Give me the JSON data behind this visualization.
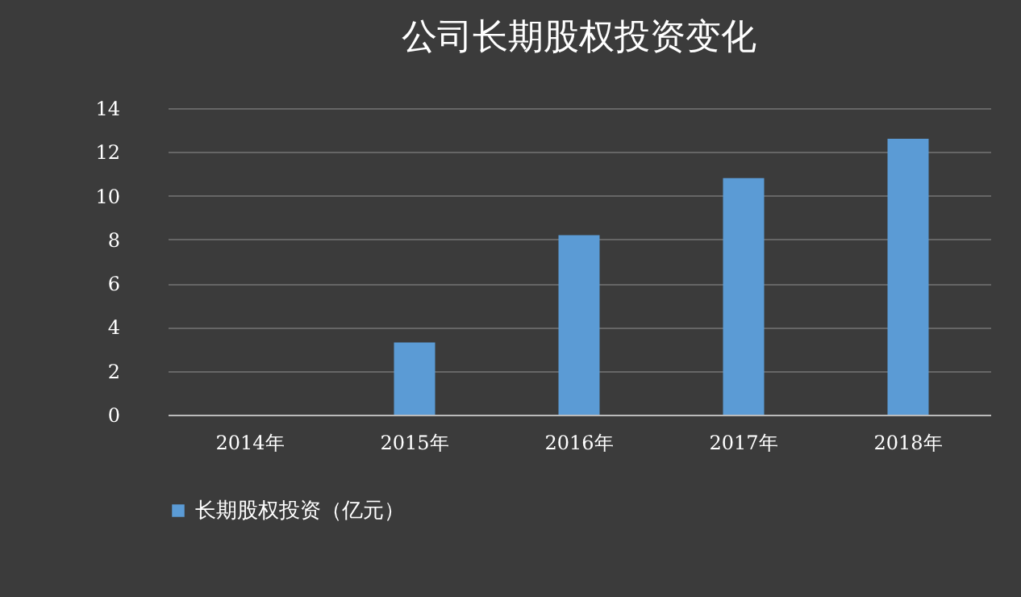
{
  "chart_data": {
    "type": "bar",
    "title": "公司长期股权投资变化",
    "categories": [
      "2014年",
      "2015年",
      "2016年",
      "2017年",
      "2018年"
    ],
    "series": [
      {
        "name": "长期股权投资（亿元）",
        "color": "#5b9bd5",
        "values": [
          0,
          3.3,
          8.2,
          10.8,
          12.6
        ]
      }
    ],
    "ylim": [
      0,
      14
    ],
    "yticks": [
      0,
      2,
      4,
      6,
      8,
      10,
      12,
      14
    ],
    "grid": "y",
    "legend": "bottom"
  }
}
